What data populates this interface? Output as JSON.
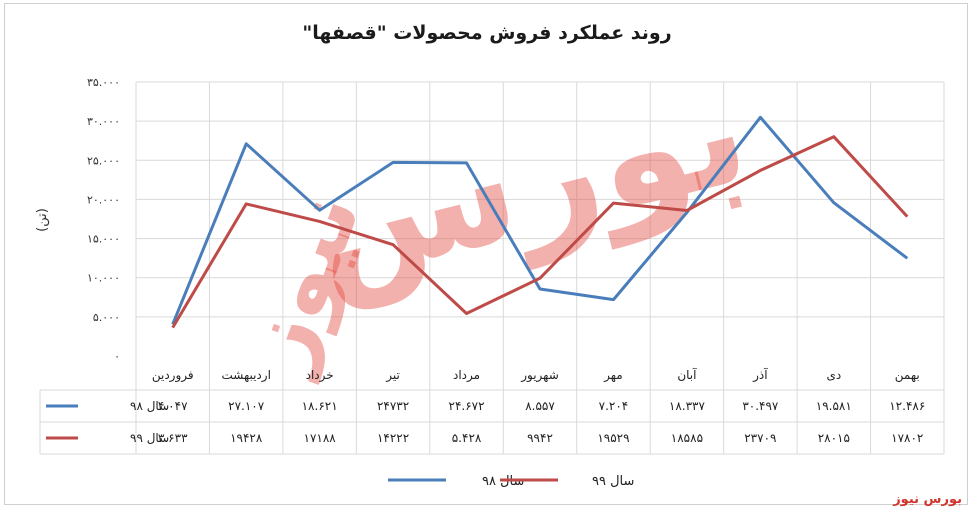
{
  "brand": "بورس نیوز",
  "colors": {
    "series98": "#4a7ebb",
    "series99": "#be4b48",
    "watermark": "#e2453c",
    "grid": "#d9d9d9"
  },
  "watermark": {
    "line1": "بورس",
    "line2": "نیوز"
  },
  "chart_data": {
    "type": "line",
    "title": "روند عملکرد فروش محصولات \"قصفها\"",
    "ylabel": "(تن)",
    "ylim": [
      0,
      35000
    ],
    "ytick_labels": [
      "۰",
      "۵.۰۰۰",
      "۱۰.۰۰۰",
      "۱۵.۰۰۰",
      "۲۰.۰۰۰",
      "۲۵.۰۰۰",
      "۳۰.۰۰۰",
      "۳۵.۰۰۰"
    ],
    "categories": [
      "فروردین",
      "اردیبهشت",
      "خرداد",
      "تیر",
      "مرداد",
      "شهریور",
      "مهر",
      "آبان",
      "آذر",
      "دی",
      "بهمن"
    ],
    "grid": true,
    "legend": "bottom",
    "series": [
      {
        "name": "سال ۹۸",
        "values": [
          4047,
          27107,
          18621,
          24732,
          24672,
          8557,
          7204,
          18337,
          30497,
          19581,
          12486
        ],
        "labels": [
          "۴.۰۴۷",
          "۲۷.۱۰۷",
          "۱۸.۶۲۱",
          "۲۴۷۳۲",
          "۲۴.۶۷۲",
          "۸.۵۵۷",
          "۷.۲۰۴",
          "۱۸.۳۳۷",
          "۳۰.۴۹۷",
          "۱۹.۵۸۱",
          "۱۲.۴۸۶"
        ]
      },
      {
        "name": "سال ۹۹",
        "values": [
          3633,
          19428,
          17188,
          14222,
          5428,
          9942,
          19529,
          18585,
          23709,
          28015,
          17802
        ],
        "labels": [
          "۳.۶۳۳",
          "۱۹۴۲۸",
          "۱۷۱۸۸",
          "۱۴۲۲۲",
          "۵.۴۲۸",
          "۹۹۴۲",
          "۱۹۵۲۹",
          "۱۸۵۸۵",
          "۲۳۷۰۹",
          "۲۸۰۱۵",
          "۱۷۸۰۲"
        ]
      }
    ]
  }
}
